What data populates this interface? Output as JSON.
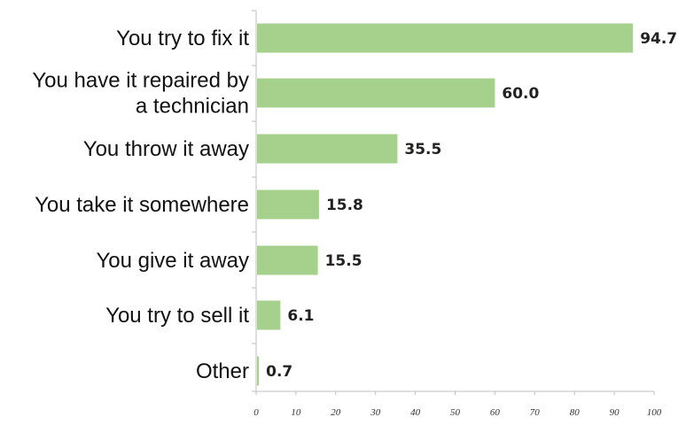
{
  "chart_data": {
    "type": "bar",
    "orientation": "horizontal",
    "title": "",
    "xlabel": "",
    "ylabel": "",
    "categories": [
      [
        "You try to fix it"
      ],
      [
        "You have it repaired by",
        "a technician"
      ],
      [
        "You throw it away"
      ],
      [
        "You take it somewhere"
      ],
      [
        "You give it away"
      ],
      [
        "You try to sell it"
      ],
      [
        "Other"
      ]
    ],
    "values": [
      94.7,
      60.0,
      35.5,
      15.8,
      15.5,
      6.1,
      0.7
    ],
    "value_labels": [
      "94.7",
      "60.0",
      "35.5",
      "15.8",
      "15.5",
      "6.1",
      "0.7"
    ],
    "xlim": [
      0,
      100
    ],
    "xticks": [
      0,
      10,
      20,
      30,
      40,
      50,
      60,
      70,
      80,
      90,
      100
    ],
    "grid": false,
    "legend": "none",
    "colors": {
      "bar": "#a6d18c",
      "axis": "#bfbfbf"
    }
  }
}
